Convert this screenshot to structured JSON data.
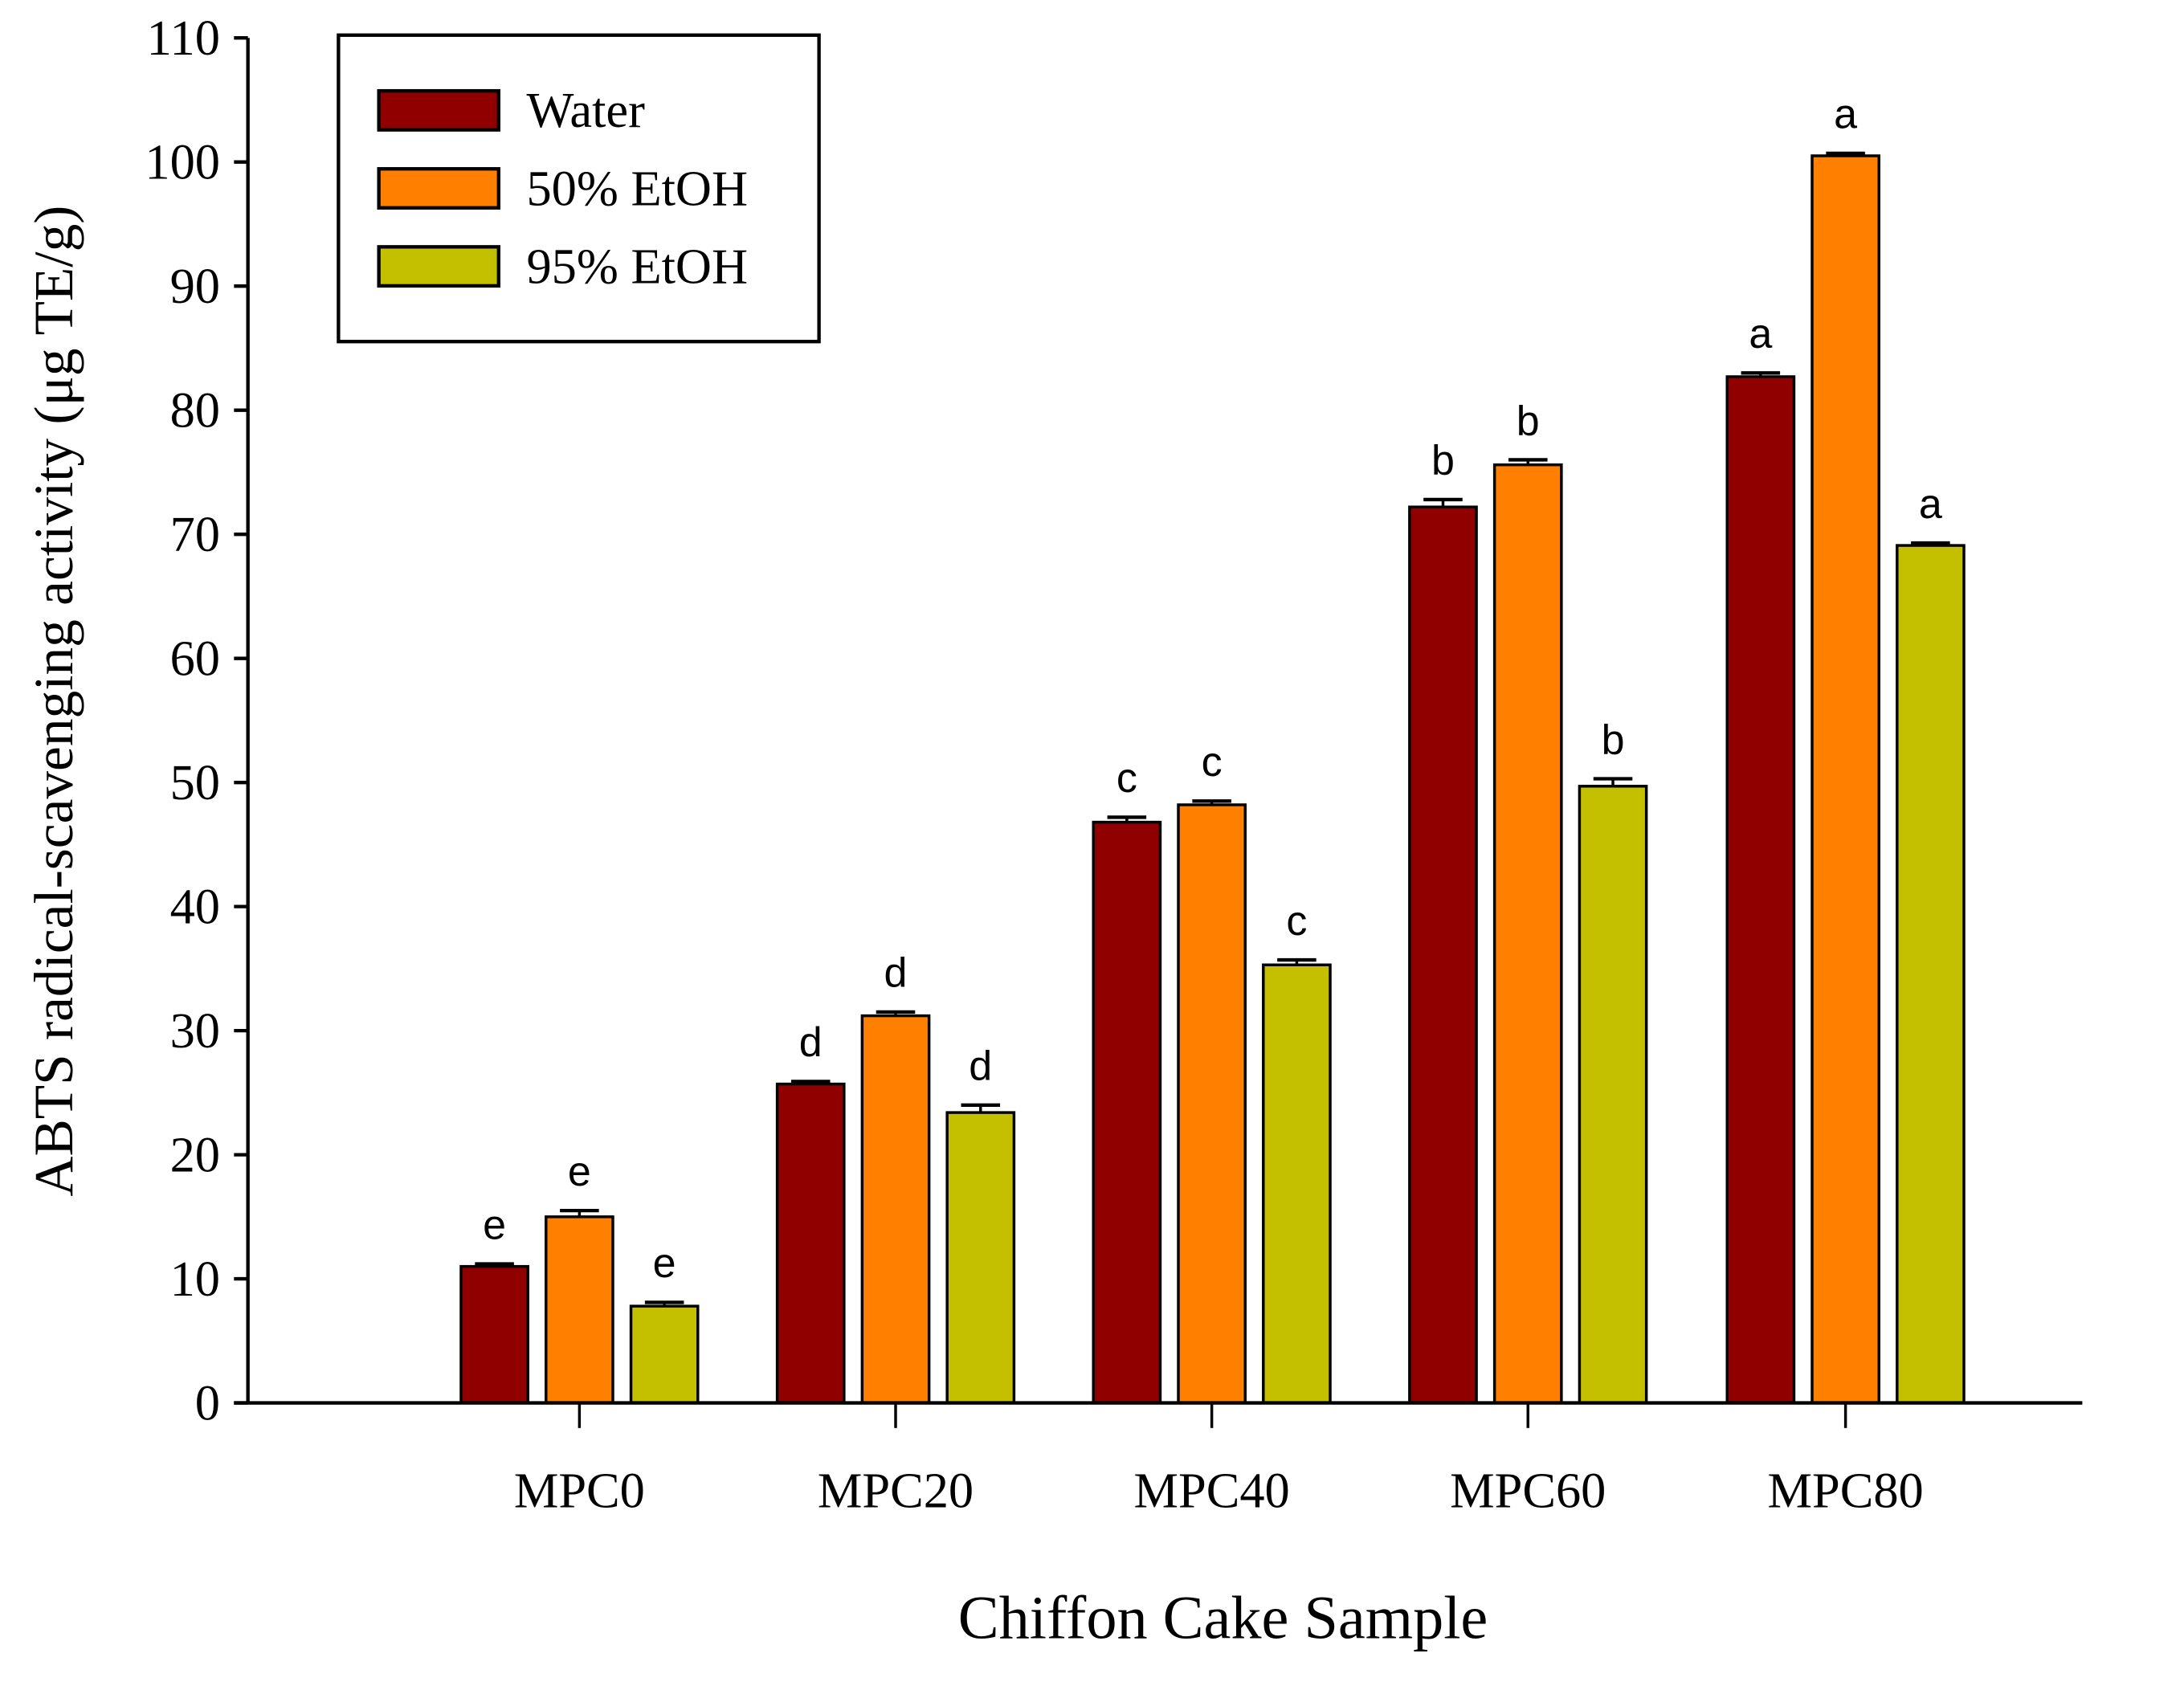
{
  "chart_data": {
    "type": "bar",
    "title": "",
    "xlabel": "Chiffon Cake Sample",
    "ylabel": "ABTS radical-scavenging activity (μg TE/g)",
    "ylim": [
      0,
      110
    ],
    "yticks": [
      0,
      10,
      20,
      30,
      40,
      50,
      60,
      70,
      80,
      90,
      100,
      110
    ],
    "categories": [
      "MPC0",
      "MPC20",
      "MPC40",
      "MPC60",
      "MPC80"
    ],
    "legend_position": "top-left",
    "series": [
      {
        "name": "Water",
        "color": "#900000",
        "values": [
          11.0,
          25.7,
          46.8,
          72.2,
          82.7
        ],
        "errors": [
          0.2,
          0.2,
          0.4,
          0.6,
          0.3
        ],
        "letters": [
          "e",
          "d",
          "c",
          "b",
          "a"
        ]
      },
      {
        "name": "50% EtOH",
        "color": "#FF8000",
        "values": [
          15.0,
          31.2,
          48.2,
          75.6,
          100.5
        ],
        "errors": [
          0.5,
          0.3,
          0.3,
          0.4,
          0.2
        ],
        "letters": [
          "e",
          "d",
          "c",
          "b",
          "a"
        ]
      },
      {
        "name": "95% EtOH",
        "color": "#C4C000",
        "values": [
          7.8,
          23.4,
          35.3,
          49.7,
          69.1
        ],
        "errors": [
          0.3,
          0.6,
          0.4,
          0.6,
          0.2
        ],
        "letters": [
          "e",
          "d",
          "c",
          "b",
          "a"
        ]
      }
    ]
  }
}
